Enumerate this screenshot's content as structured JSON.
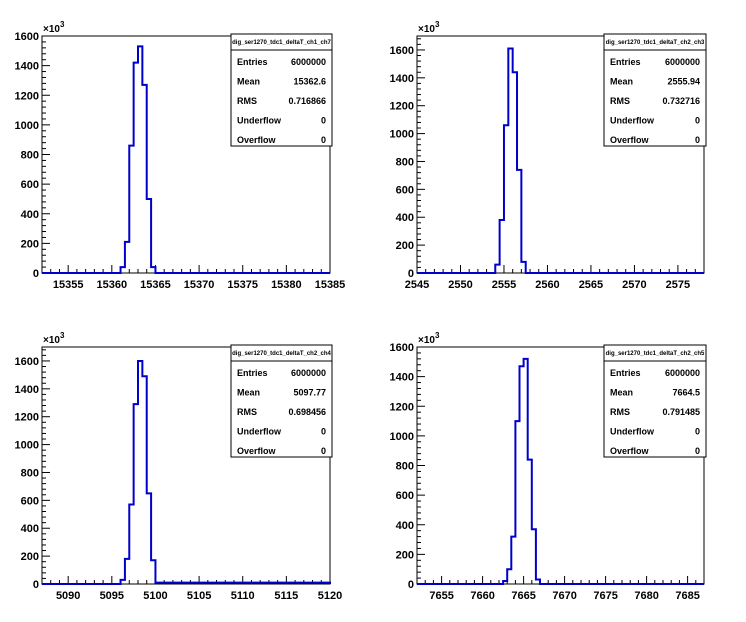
{
  "chart_data": [
    {
      "type": "bar",
      "stats": {
        "title": "dig_ser1270_tdc1_deltaT_ch1_ch7",
        "rows": [
          {
            "label": "Entries",
            "value": "6000000"
          },
          {
            "label": "Mean",
            "value": "15362.6"
          },
          {
            "label": "RMS",
            "value": "0.716866"
          },
          {
            "label": "Underflow",
            "value": "0"
          },
          {
            "label": "Overflow",
            "value": "0"
          }
        ]
      },
      "xlim": [
        15352,
        15385
      ],
      "xticks": [
        15355,
        15360,
        15365,
        15370,
        15375,
        15380,
        15385
      ],
      "ylim": [
        0,
        1600
      ],
      "yticks": [
        0,
        200,
        400,
        600,
        800,
        1000,
        1200,
        1400,
        1600
      ],
      "y_exponent": "×10",
      "y_exponent_power": "3",
      "bin_edges": [
        15352,
        15361,
        15361.5,
        15362,
        15362.5,
        15363,
        15363.5,
        15364,
        15364.5,
        15365
      ],
      "values": [
        0,
        40,
        210,
        860,
        1420,
        1530,
        1270,
        500,
        40,
        0
      ]
    },
    {
      "type": "bar",
      "stats": {
        "title": "dig_ser1270_tdc1_deltaT_ch2_ch3",
        "rows": [
          {
            "label": "Entries",
            "value": "6000000"
          },
          {
            "label": "Mean",
            "value": "2555.94"
          },
          {
            "label": "RMS",
            "value": "0.732716"
          },
          {
            "label": "Underflow",
            "value": "0"
          },
          {
            "label": "Overflow",
            "value": "0"
          }
        ]
      },
      "xlim": [
        2545,
        2578
      ],
      "xticks": [
        2545,
        2550,
        2555,
        2560,
        2565,
        2570,
        2575
      ],
      "ylim": [
        0,
        1700
      ],
      "yticks": [
        0,
        200,
        400,
        600,
        800,
        1000,
        1200,
        1400,
        1600
      ],
      "y_exponent": "×10",
      "y_exponent_power": "3",
      "bin_edges": [
        2545,
        2554,
        2554.5,
        2555,
        2555.5,
        2556,
        2556.5,
        2557,
        2557.5,
        2558
      ],
      "values": [
        0,
        60,
        380,
        1060,
        1610,
        1440,
        740,
        80,
        0,
        0
      ]
    },
    {
      "type": "bar",
      "stats": {
        "title": "dig_ser1270_tdc1_deltaT_ch2_ch4",
        "rows": [
          {
            "label": "Entries",
            "value": "6000000"
          },
          {
            "label": "Mean",
            "value": "5097.77"
          },
          {
            "label": "RMS",
            "value": "0.698456"
          },
          {
            "label": "Underflow",
            "value": "0"
          },
          {
            "label": "Overflow",
            "value": "0"
          }
        ]
      },
      "xlim": [
        5087,
        5120
      ],
      "xticks": [
        5090,
        5095,
        5100,
        5105,
        5110,
        5115,
        5120
      ],
      "ylim": [
        0,
        1700
      ],
      "yticks": [
        0,
        200,
        400,
        600,
        800,
        1000,
        1200,
        1400,
        1600
      ],
      "y_exponent": "×10",
      "y_exponent_power": "3",
      "bin_edges": [
        5087,
        5096,
        5096.5,
        5097,
        5097.5,
        5098,
        5098.5,
        5099,
        5099.5,
        5100
      ],
      "values": [
        0,
        30,
        180,
        570,
        1290,
        1600,
        1490,
        650,
        170,
        10
      ]
    },
    {
      "type": "bar",
      "stats": {
        "title": "dig_ser1270_tdc1_deltaT_ch2_ch5",
        "rows": [
          {
            "label": "Entries",
            "value": "6000000"
          },
          {
            "label": "Mean",
            "value": "7664.5"
          },
          {
            "label": "RMS",
            "value": "0.791485"
          },
          {
            "label": "Underflow",
            "value": "0"
          },
          {
            "label": "Overflow",
            "value": "0"
          }
        ]
      },
      "xlim": [
        7652,
        7687
      ],
      "xticks": [
        7655,
        7660,
        7665,
        7670,
        7675,
        7680,
        7685
      ],
      "ylim": [
        0,
        1600
      ],
      "yticks": [
        0,
        200,
        400,
        600,
        800,
        1000,
        1200,
        1400,
        1600
      ],
      "y_exponent": "×10",
      "y_exponent_power": "3",
      "bin_edges": [
        7652,
        7662.5,
        7663,
        7663.5,
        7664,
        7664.5,
        7665,
        7665.5,
        7666,
        7666.5,
        7667
      ],
      "values": [
        0,
        20,
        100,
        320,
        1100,
        1470,
        1520,
        840,
        370,
        30,
        0
      ]
    }
  ]
}
